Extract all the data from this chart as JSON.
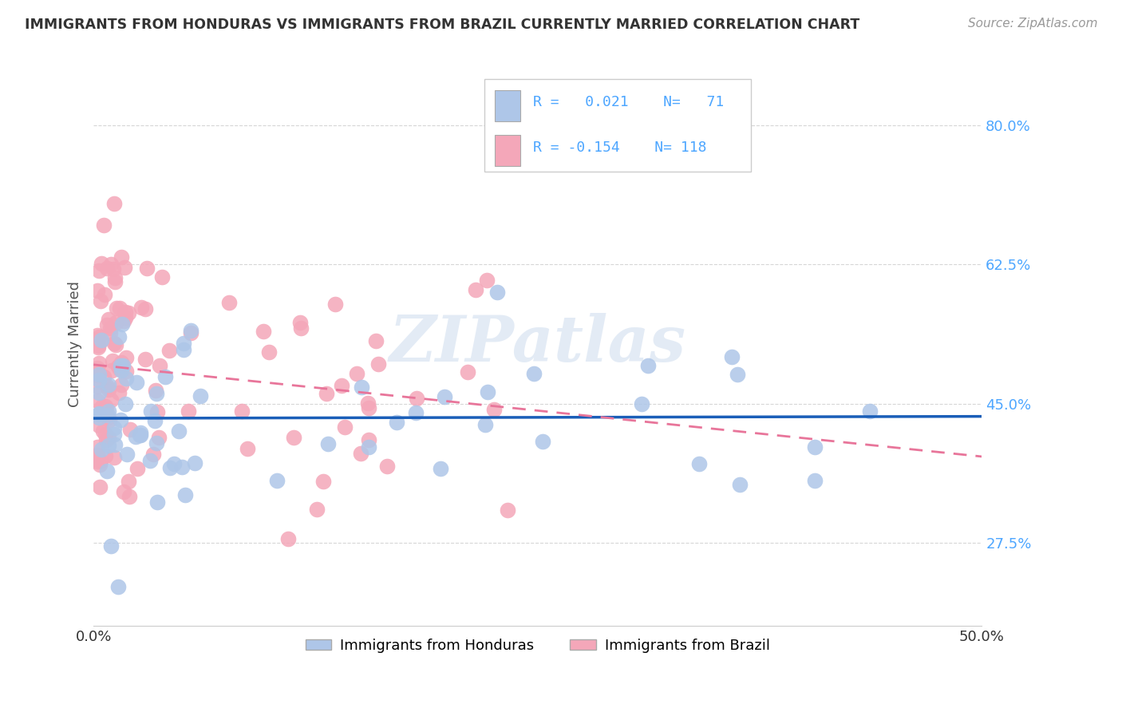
{
  "title": "IMMIGRANTS FROM HONDURAS VS IMMIGRANTS FROM BRAZIL CURRENTLY MARRIED CORRELATION CHART",
  "source": "Source: ZipAtlas.com",
  "ylabel": "Currently Married",
  "yticks": [
    0.275,
    0.45,
    0.625,
    0.8
  ],
  "ytick_labels": [
    "27.5%",
    "45.0%",
    "62.5%",
    "80.0%"
  ],
  "xlim": [
    0.0,
    0.5
  ],
  "ylim": [
    0.17,
    0.88
  ],
  "color_honduras": "#aec6e8",
  "color_brazil": "#f4a7b9",
  "line_color_honduras": "#1a5eb8",
  "line_color_brazil": "#e8759a",
  "watermark": "ZIPatlas",
  "label_honduras": "Immigrants from Honduras",
  "label_brazil": "Immigrants from Brazil",
  "background_color": "#ffffff",
  "grid_color": "#cccccc",
  "title_color": "#333333",
  "source_color": "#999999",
  "ylabel_color": "#555555",
  "ytick_color": "#4da6ff",
  "xtick_color": "#333333"
}
